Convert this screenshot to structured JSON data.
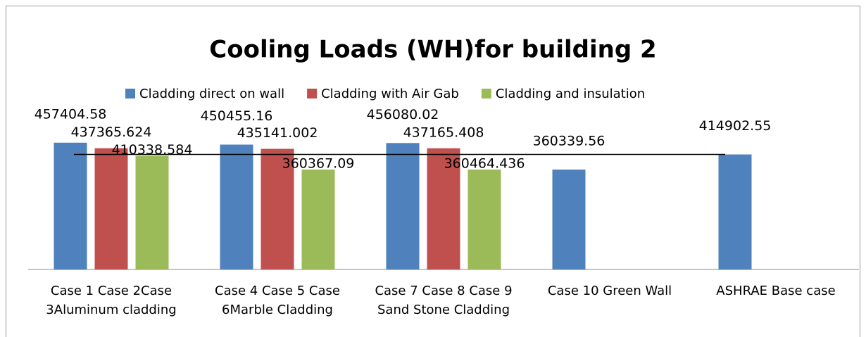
{
  "chart_data": {
    "type": "bar",
    "title": "Cooling Loads (WH)for building 2",
    "categories": [
      "Case 1 Case 2Case 3Aluminum cladding",
      "Case 4 Case 5 Case 6Marble Cladding",
      "Case 7 Case 8 Case 9 Sand Stone Cladding",
      "Case 10 Green Wall",
      "ASHRAE Base case"
    ],
    "series": [
      {
        "name": "Cladding direct on wall",
        "color": "#4f81bd",
        "values": [
          457404.58,
          450455.16,
          456080.02,
          360339.56,
          414902.55
        ]
      },
      {
        "name": "Cladding with Air Gab",
        "color": "#c0504d",
        "values": [
          437365.624,
          435141.002,
          437165.408,
          null,
          null
        ]
      },
      {
        "name": "Cladding and insulation",
        "color": "#9bbb59",
        "values": [
          410338.584,
          360367.09,
          360464.436,
          null,
          null
        ]
      }
    ],
    "ylim": [
      0,
      500000
    ],
    "legend": "top"
  }
}
